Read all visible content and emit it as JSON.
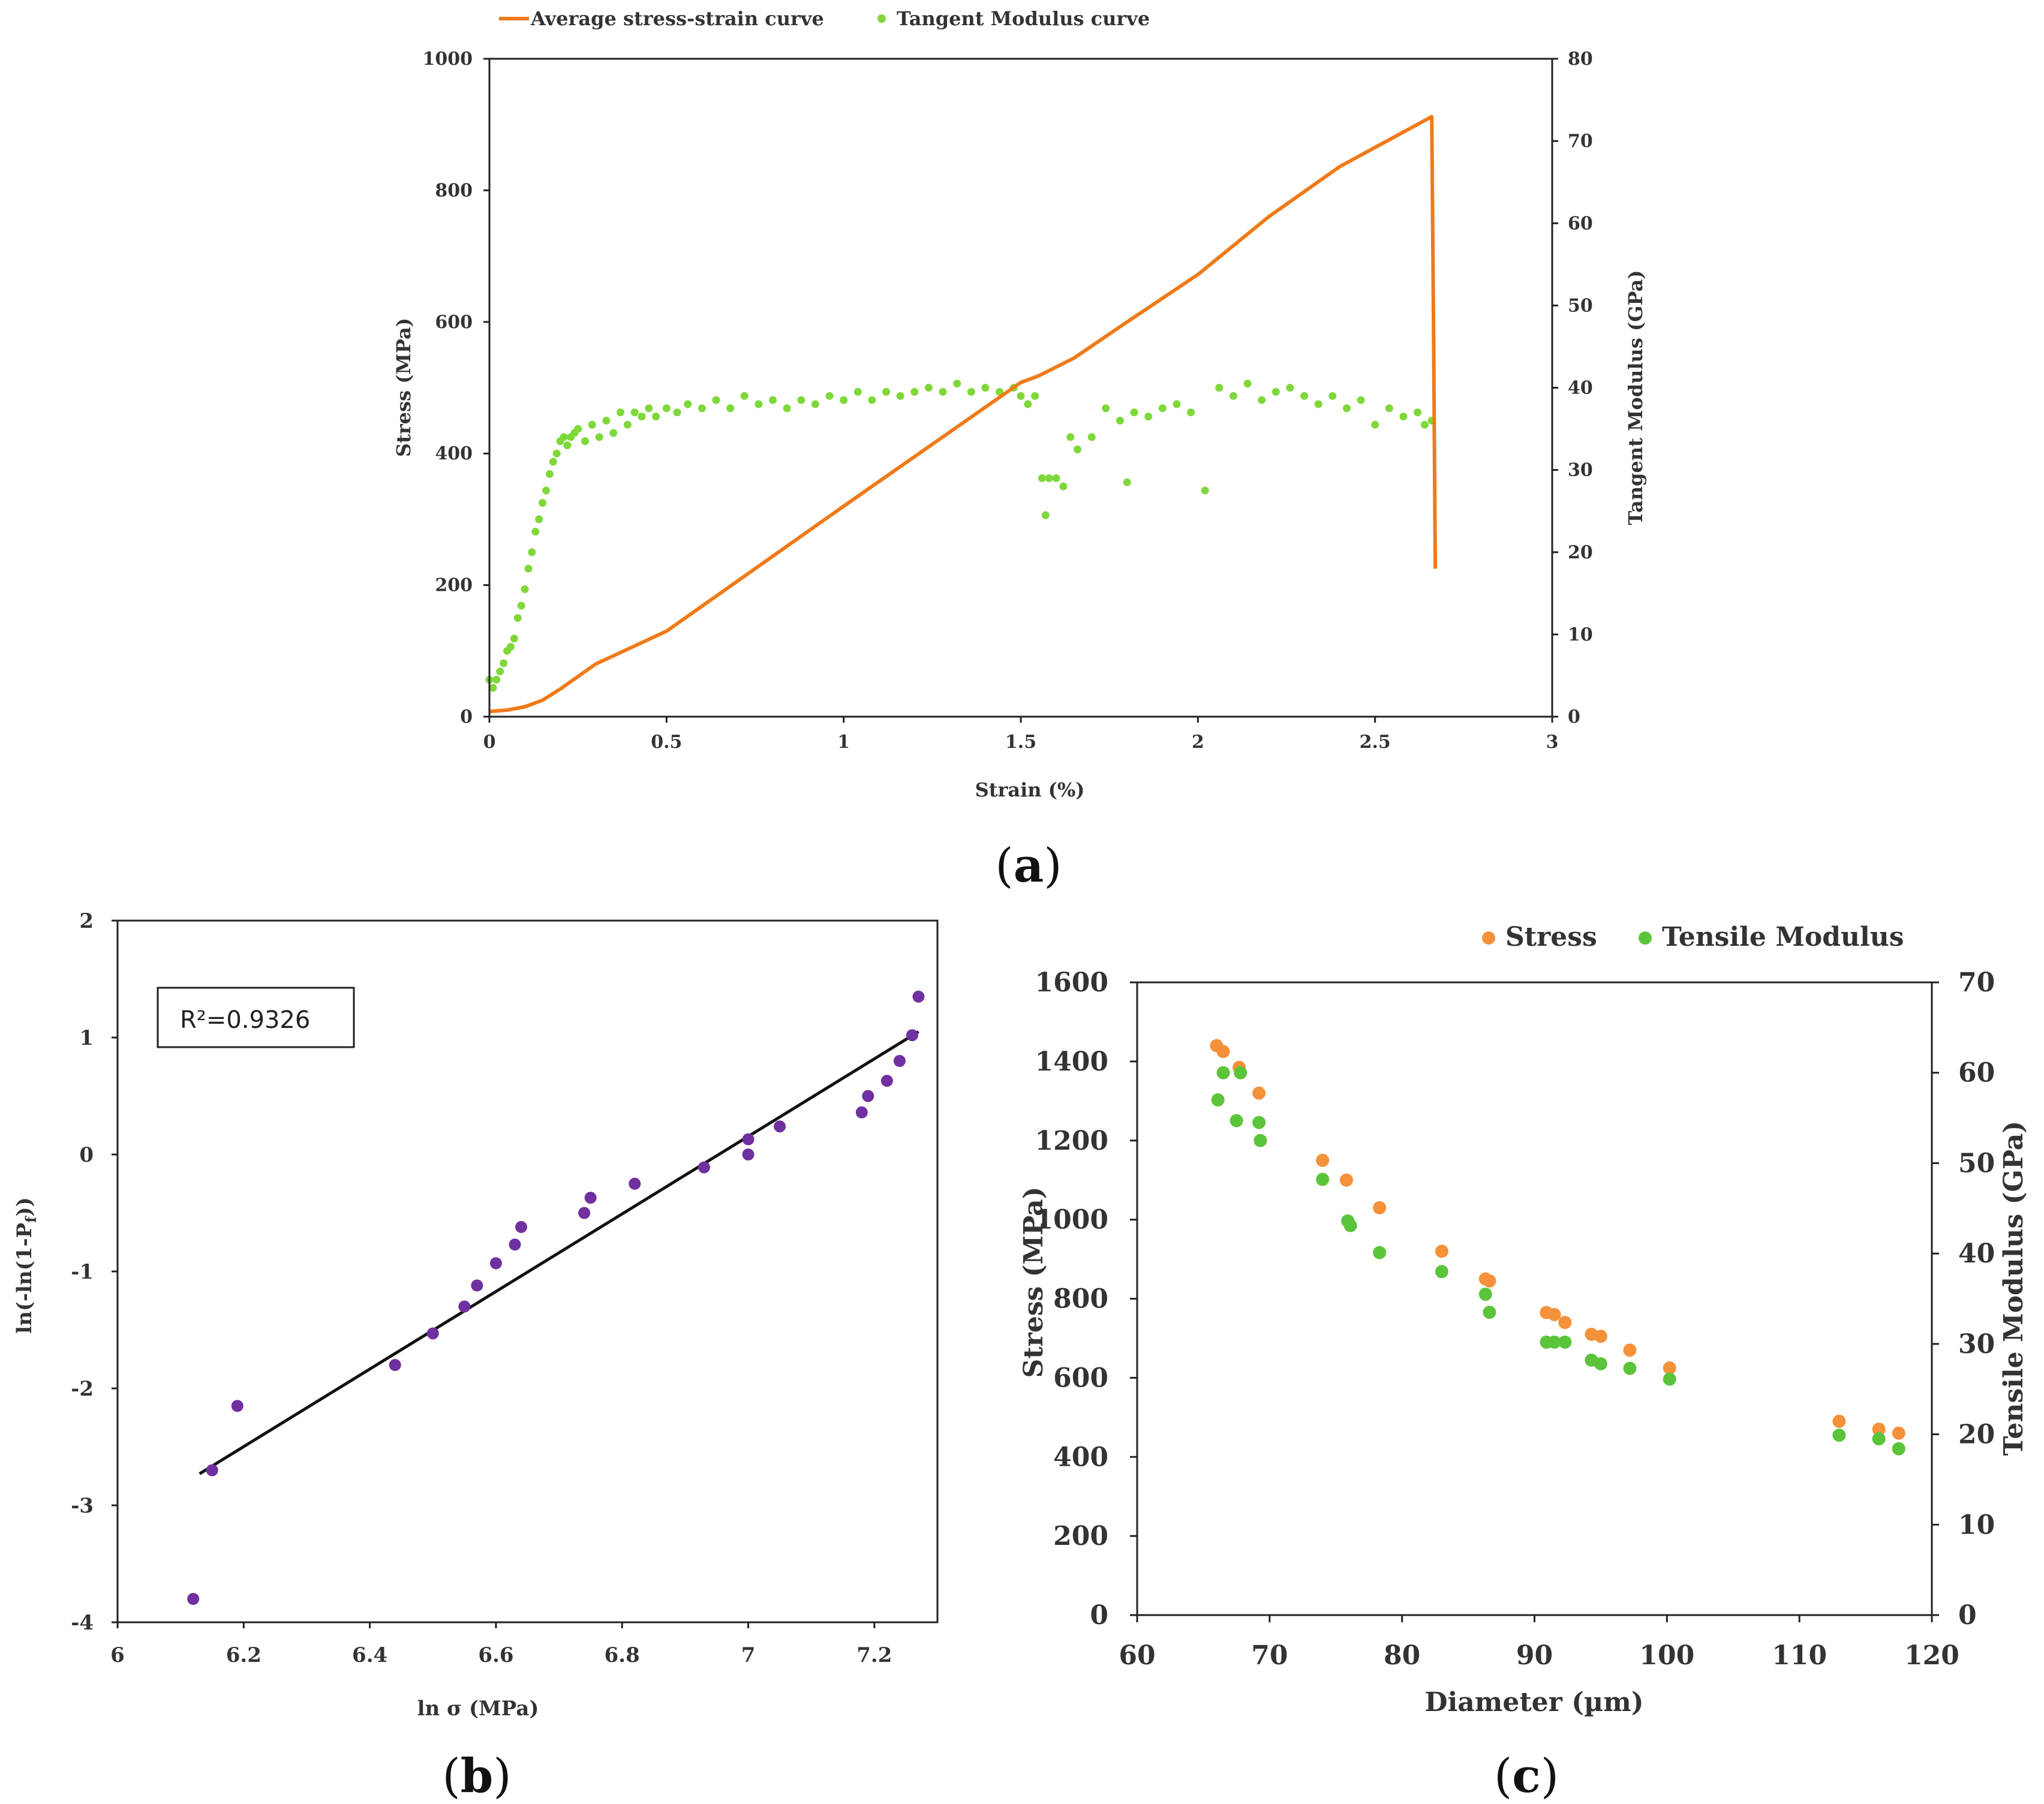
{
  "chart_data": [
    {
      "id": "a",
      "panel_label": "a",
      "type": "line",
      "xlabel": "Strain (%)",
      "ylabel": "Stress (MPa)",
      "y2label": "Tangent Modulus (GPa)",
      "xlim": [
        0,
        3
      ],
      "ylim": [
        0,
        1000
      ],
      "y2lim": [
        0,
        80
      ],
      "xticks": [
        0,
        0.5,
        1,
        1.5,
        2,
        2.5,
        3
      ],
      "yticks": [
        0,
        200,
        400,
        600,
        800,
        1000
      ],
      "y2ticks": [
        0,
        10,
        20,
        30,
        40,
        50,
        60,
        70,
        80
      ],
      "legend": [
        "Average stress-strain curve",
        "Tangent Modulus curve"
      ],
      "colors": {
        "stress": "#f07a18",
        "modulus": "#7fd83a"
      },
      "series": [
        {
          "name": "Average stress-strain curve",
          "axis": "left",
          "x": [
            0,
            0.05,
            0.1,
            0.15,
            0.2,
            0.3,
            0.5,
            1.0,
            1.5,
            1.55,
            1.65,
            1.8,
            2.0,
            2.2,
            2.4,
            2.66,
            2.665,
            2.67
          ],
          "y": [
            8,
            10,
            15,
            25,
            42,
            80,
            130,
            320,
            508,
            518,
            545,
            600,
            672,
            760,
            836,
            912,
            600,
            225
          ]
        },
        {
          "name": "Tangent Modulus curve",
          "axis": "right",
          "x": [
            0,
            0.01,
            0.02,
            0.03,
            0.04,
            0.05,
            0.06,
            0.07,
            0.08,
            0.09,
            0.1,
            0.11,
            0.12,
            0.13,
            0.14,
            0.15,
            0.16,
            0.17,
            0.18,
            0.19,
            0.2,
            0.21,
            0.22,
            0.23,
            0.24,
            0.25,
            0.27,
            0.29,
            0.31,
            0.33,
            0.35,
            0.37,
            0.39,
            0.41,
            0.43,
            0.45,
            0.47,
            0.5,
            0.53,
            0.56,
            0.6,
            0.64,
            0.68,
            0.72,
            0.76,
            0.8,
            0.84,
            0.88,
            0.92,
            0.96,
            1.0,
            1.04,
            1.08,
            1.12,
            1.16,
            1.2,
            1.24,
            1.28,
            1.32,
            1.36,
            1.4,
            1.44,
            1.48,
            1.5,
            1.52,
            1.54,
            1.56,
            1.57,
            1.58,
            1.6,
            1.62,
            1.64,
            1.66,
            1.7,
            1.74,
            1.78,
            1.8,
            1.82,
            1.86,
            1.9,
            1.94,
            1.98,
            2.02,
            2.06,
            2.1,
            2.14,
            2.18,
            2.22,
            2.26,
            2.3,
            2.34,
            2.38,
            2.42,
            2.46,
            2.5,
            2.54,
            2.58,
            2.62,
            2.64,
            2.66
          ],
          "y": [
            4.5,
            3.5,
            4.5,
            5.5,
            6.5,
            8,
            8.5,
            9.5,
            12,
            13.5,
            15.5,
            18,
            20,
            22.5,
            24,
            26,
            27.5,
            29.5,
            31,
            32,
            33.5,
            34,
            33,
            34,
            34.5,
            35,
            33.5,
            35.5,
            34,
            36,
            34.5,
            37,
            35.5,
            37,
            36.5,
            37.5,
            36.5,
            37.5,
            37,
            38,
            37.5,
            38.5,
            37.5,
            39,
            38,
            38.5,
            37.5,
            38.5,
            38,
            39,
            38.5,
            39.5,
            38.5,
            39.5,
            39,
            39.5,
            40,
            39.5,
            40.5,
            39.5,
            40,
            39.5,
            40,
            39,
            38,
            39,
            29,
            24.5,
            29,
            29,
            28,
            34,
            32.5,
            34,
            37.5,
            36,
            28.5,
            37,
            36.5,
            37.5,
            38,
            37,
            27.5,
            40,
            39,
            40.5,
            38.5,
            39.5,
            40,
            39,
            38,
            39,
            37.5,
            38.5,
            35.5,
            37.5,
            36.5,
            37,
            35.5,
            36
          ]
        }
      ]
    },
    {
      "id": "b",
      "panel_label": "b",
      "type": "scatter",
      "xlabel": "ln σ (MPa)",
      "ylabel": "ln(-ln(1-P",
      "ylabel_sub": "f",
      "ylabel_end": "))",
      "xlim": [
        6,
        7.3
      ],
      "ylim": [
        -4,
        2
      ],
      "xticks": [
        "6",
        "6.2",
        "6.4",
        "6.6",
        "6.8",
        "7",
        "7.2"
      ],
      "yticks": [
        "-4",
        "-3",
        "-2",
        "-1",
        "0",
        "1",
        "2"
      ],
      "annotation": "R²=0.9326",
      "colors": {
        "points": "#7030a0",
        "fit": "#111111"
      },
      "points": {
        "x": [
          6.12,
          6.15,
          6.19,
          6.44,
          6.5,
          6.55,
          6.57,
          6.6,
          6.63,
          6.64,
          6.74,
          6.75,
          6.82,
          6.93,
          7.0,
          7.0,
          7.05,
          7.18,
          7.19,
          7.22,
          7.24,
          7.26,
          7.27
        ],
        "y": [
          -3.8,
          -2.7,
          -2.15,
          -1.8,
          -1.53,
          -1.3,
          -1.12,
          -0.93,
          -0.77,
          -0.62,
          -0.5,
          -0.37,
          -0.25,
          -0.11,
          0.0,
          0.13,
          0.24,
          0.36,
          0.5,
          0.63,
          0.8,
          1.02,
          1.35
        ]
      },
      "fit_line": {
        "x": [
          6.13,
          7.27
        ],
        "y": [
          -2.73,
          1.05
        ]
      }
    },
    {
      "id": "c",
      "panel_label": "c",
      "type": "scatter",
      "xlabel": "Diameter (µm)",
      "ylabel": "Stress (MPa)",
      "y2label": "Tensile Modulus (GPa)",
      "xlim": [
        60,
        120
      ],
      "ylim": [
        0,
        1600
      ],
      "y2lim": [
        0,
        70
      ],
      "xticks": [
        "60",
        "70",
        "80",
        "90",
        "100",
        "110",
        "120"
      ],
      "yticks": [
        "0",
        "200",
        "400",
        "600",
        "800",
        "1000",
        "1200",
        "1400",
        "1600"
      ],
      "y2ticks": [
        "0",
        "10",
        "20",
        "30",
        "40",
        "50",
        "60",
        "70"
      ],
      "legend": [
        "Stress",
        "Tensile Modulus"
      ],
      "colors": {
        "stress": "#f5913a",
        "modulus": "#5cc43a"
      },
      "series": [
        {
          "name": "Stress",
          "axis": "left",
          "x": [
            66.0,
            66.5,
            67.7,
            69.2,
            74.0,
            75.8,
            78.3,
            83.0,
            86.3,
            86.6,
            90.9,
            91.5,
            92.3,
            94.3,
            95.0,
            97.2,
            100.2,
            113.0,
            116.0,
            117.5
          ],
          "y": [
            1440,
            1425,
            1385,
            1320,
            1150,
            1100,
            1030,
            920,
            850,
            845,
            765,
            760,
            740,
            710,
            705,
            670,
            625,
            490,
            470,
            460
          ]
        },
        {
          "name": "Tensile Modulus",
          "axis": "right",
          "x": [
            66.1,
            66.5,
            67.5,
            67.8,
            69.2,
            69.3,
            74.0,
            75.9,
            76.1,
            78.3,
            83.0,
            86.3,
            86.6,
            90.9,
            91.5,
            92.3,
            94.3,
            95.0,
            97.2,
            100.2,
            113.0,
            116.0,
            117.5
          ],
          "y": [
            57,
            60,
            54.7,
            60,
            54.5,
            52.5,
            48.2,
            43.6,
            43.1,
            40.1,
            38,
            35.5,
            33.5,
            30.2,
            30.2,
            30.2,
            28.2,
            27.8,
            27.3,
            26.1,
            19.9,
            19.5,
            18.4
          ]
        }
      ]
    }
  ]
}
